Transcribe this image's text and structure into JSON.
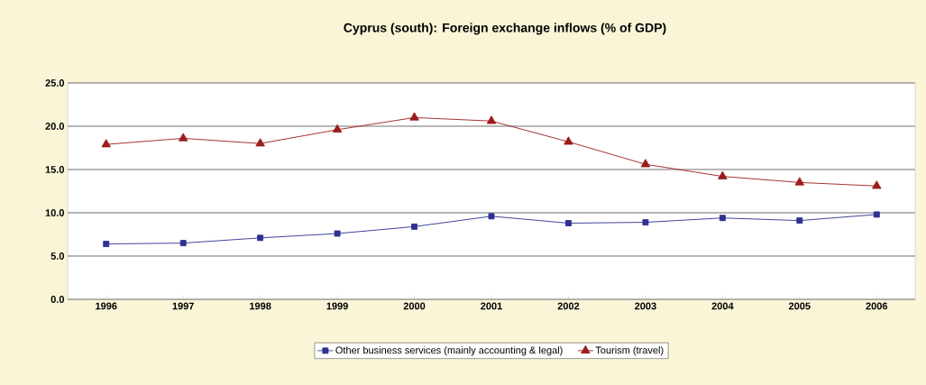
{
  "chart_data": {
    "type": "line",
    "title": "Cyprus (south): Foreign exchange inflows (% of GDP)",
    "categories": [
      "1996",
      "1997",
      "1998",
      "1999",
      "2000",
      "2001",
      "2002",
      "2003",
      "2004",
      "2005",
      "2006"
    ],
    "series": [
      {
        "name": "Other business services (mainly accounting & legal)",
        "color": "#2e3192",
        "marker": "square",
        "values": [
          6.4,
          6.5,
          7.1,
          7.6,
          8.4,
          9.6,
          8.8,
          8.9,
          9.4,
          9.1,
          9.8
        ]
      },
      {
        "name": "Tourism (travel)",
        "color": "#9b1c1c",
        "marker": "triangle",
        "values": [
          17.9,
          18.6,
          18.0,
          19.6,
          21.0,
          20.6,
          18.2,
          15.6,
          14.2,
          13.5,
          13.1
        ]
      }
    ],
    "ylim": [
      0,
      25
    ],
    "yticks": [
      {
        "value": 0,
        "label": "0.0"
      },
      {
        "value": 5,
        "label": "5.0"
      },
      {
        "value": 10,
        "label": "10.0"
      },
      {
        "value": 15,
        "label": "15.0"
      },
      {
        "value": 20,
        "label": "20.0"
      },
      {
        "value": 25,
        "label": "25.0"
      }
    ],
    "grid": "y",
    "legend": "bottom"
  }
}
